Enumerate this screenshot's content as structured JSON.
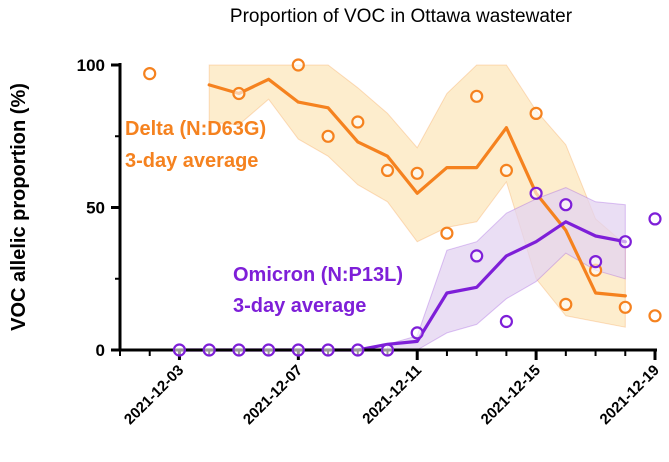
{
  "chart_data": {
    "type": "line",
    "title": "Proportion of VOC in Ottawa wastewater",
    "ylabel": "VOC allelic proportion (%)",
    "xlabel": "",
    "ylim": [
      0,
      100
    ],
    "yticks": [
      "0",
      "50",
      "100"
    ],
    "xlim": [
      "2021-12-01",
      "2021-12-19"
    ],
    "xticks": [
      "2021-12-03",
      "2021-12-07",
      "2021-12-11",
      "2021-12-15",
      "2021-12-19"
    ],
    "grid": false,
    "annotations": {
      "delta_line1": "Delta (N:D63G)",
      "delta_line2": "3-day average",
      "omicron_line1": "Omicron (N:P13L)",
      "omicron_line2": "3-day average"
    },
    "series": [
      {
        "key": "delta",
        "color": "#F5821F",
        "band_color": "#FCE7BC",
        "points": [
          [
            "2021-12-02",
            97
          ],
          [
            "2021-12-05",
            90
          ],
          [
            "2021-12-07",
            100
          ],
          [
            "2021-12-08",
            75
          ],
          [
            "2021-12-09",
            80
          ],
          [
            "2021-12-10",
            63
          ],
          [
            "2021-12-11",
            62
          ],
          [
            "2021-12-12",
            41
          ],
          [
            "2021-12-13",
            89
          ],
          [
            "2021-12-14",
            63
          ],
          [
            "2021-12-15",
            83
          ],
          [
            "2021-12-16",
            16
          ],
          [
            "2021-12-17",
            28
          ],
          [
            "2021-12-18",
            15
          ],
          [
            "2021-12-19",
            12
          ]
        ],
        "average": [
          [
            "2021-12-04",
            93
          ],
          [
            "2021-12-05",
            90
          ],
          [
            "2021-12-06",
            95
          ],
          [
            "2021-12-07",
            87
          ],
          [
            "2021-12-08",
            85
          ],
          [
            "2021-12-09",
            73
          ],
          [
            "2021-12-10",
            68
          ],
          [
            "2021-12-11",
            55
          ],
          [
            "2021-12-12",
            64
          ],
          [
            "2021-12-13",
            64
          ],
          [
            "2021-12-14",
            78
          ],
          [
            "2021-12-15",
            55
          ],
          [
            "2021-12-16",
            42
          ],
          [
            "2021-12-17",
            20
          ],
          [
            "2021-12-18",
            19
          ]
        ],
        "band_upper": [
          [
            "2021-12-04",
            100
          ],
          [
            "2021-12-05",
            100
          ],
          [
            "2021-12-06",
            100
          ],
          [
            "2021-12-07",
            100
          ],
          [
            "2021-12-08",
            100
          ],
          [
            "2021-12-09",
            92
          ],
          [
            "2021-12-10",
            83
          ],
          [
            "2021-12-11",
            71
          ],
          [
            "2021-12-12",
            90
          ],
          [
            "2021-12-13",
            100
          ],
          [
            "2021-12-14",
            100
          ],
          [
            "2021-12-15",
            84
          ],
          [
            "2021-12-16",
            72
          ],
          [
            "2021-12-17",
            46
          ],
          [
            "2021-12-18",
            37
          ]
        ],
        "band_lower": [
          [
            "2021-12-04",
            80
          ],
          [
            "2021-12-05",
            79
          ],
          [
            "2021-12-06",
            88
          ],
          [
            "2021-12-07",
            74
          ],
          [
            "2021-12-08",
            68
          ],
          [
            "2021-12-09",
            58
          ],
          [
            "2021-12-10",
            52
          ],
          [
            "2021-12-11",
            38
          ],
          [
            "2021-12-12",
            43
          ],
          [
            "2021-12-13",
            45
          ],
          [
            "2021-12-14",
            59
          ],
          [
            "2021-12-15",
            25
          ],
          [
            "2021-12-16",
            12
          ],
          [
            "2021-12-17",
            10
          ],
          [
            "2021-12-18",
            8
          ]
        ]
      },
      {
        "key": "omicron",
        "color": "#7E1FD8",
        "band_color": "#E3D3F0",
        "points": [
          [
            "2021-12-03",
            0
          ],
          [
            "2021-12-04",
            0
          ],
          [
            "2021-12-05",
            0
          ],
          [
            "2021-12-06",
            0
          ],
          [
            "2021-12-07",
            0
          ],
          [
            "2021-12-08",
            0
          ],
          [
            "2021-12-09",
            0
          ],
          [
            "2021-12-10",
            0
          ],
          [
            "2021-12-11",
            6
          ],
          [
            "2021-12-13",
            33
          ],
          [
            "2021-12-14",
            10
          ],
          [
            "2021-12-15",
            55
          ],
          [
            "2021-12-16",
            51
          ],
          [
            "2021-12-17",
            31
          ],
          [
            "2021-12-18",
            38
          ],
          [
            "2021-12-19",
            46
          ]
        ],
        "average": [
          [
            "2021-12-03",
            0
          ],
          [
            "2021-12-04",
            0
          ],
          [
            "2021-12-05",
            0
          ],
          [
            "2021-12-06",
            0
          ],
          [
            "2021-12-07",
            0
          ],
          [
            "2021-12-08",
            0
          ],
          [
            "2021-12-09",
            0
          ],
          [
            "2021-12-10",
            2
          ],
          [
            "2021-12-11",
            3
          ],
          [
            "2021-12-12",
            20
          ],
          [
            "2021-12-13",
            22
          ],
          [
            "2021-12-14",
            33
          ],
          [
            "2021-12-15",
            38
          ],
          [
            "2021-12-16",
            45
          ],
          [
            "2021-12-17",
            40
          ],
          [
            "2021-12-18",
            38
          ]
        ],
        "band_upper": [
          [
            "2021-12-10",
            2
          ],
          [
            "2021-12-11",
            5
          ],
          [
            "2021-12-12",
            35
          ],
          [
            "2021-12-13",
            38
          ],
          [
            "2021-12-14",
            48
          ],
          [
            "2021-12-15",
            53
          ],
          [
            "2021-12-16",
            57
          ],
          [
            "2021-12-17",
            52
          ],
          [
            "2021-12-18",
            51
          ]
        ],
        "band_lower": [
          [
            "2021-12-10",
            0
          ],
          [
            "2021-12-11",
            0
          ],
          [
            "2021-12-12",
            6
          ],
          [
            "2021-12-13",
            9
          ],
          [
            "2021-12-14",
            18
          ],
          [
            "2021-12-15",
            24
          ],
          [
            "2021-12-16",
            34
          ],
          [
            "2021-12-17",
            28
          ],
          [
            "2021-12-18",
            25
          ]
        ]
      }
    ]
  }
}
